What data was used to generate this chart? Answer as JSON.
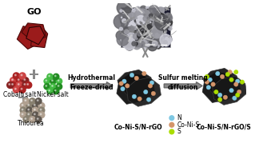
{
  "background_color": "#ffffff",
  "go_label": "GO",
  "cobalt_label": "Cobalt salt",
  "nickel_label": "Nickel salt",
  "thiourea_label": "Thiourea",
  "arrow1_label1": "Hydrothermal",
  "arrow1_label2": "Freeze-dried",
  "arrow2_label1": "Sulfur melting",
  "arrow2_label2": "diffusion",
  "product1_label": "Co-Ni-S/N-rGO",
  "product2_label": "Co-Ni-S/N-rGO/S",
  "legend_N": "N",
  "legend_CoNiS": "Co-Ni-S",
  "legend_S": "S",
  "go_color": "#9B1B1B",
  "go_dark": "#4A0808",
  "go_edge": "#2A0404",
  "cobalt_color1": "#CC4444",
  "cobalt_color2": "#AA2222",
  "cobalt_color3": "#882222",
  "nickel_color1": "#44BB44",
  "nickel_color2": "#228B22",
  "thiourea_color1": "#B0A090",
  "thiourea_color2": "#888070",
  "thiourea_color3": "#605850",
  "aerogel_color1": "#080808",
  "aerogel_color2": "#111111",
  "aerogel_color3": "#181818",
  "aerogel_edge": "#303030",
  "n_dot_color": "#7EC8E3",
  "conis_dot_color": "#D4956A",
  "s_dot_color": "#AADD00",
  "arrow_color": "#888888",
  "arrow_dark": "#666666",
  "text_color": "#000000",
  "label_fontsize": 7.0,
  "small_fontsize": 5.5,
  "tiny_fontsize": 4.5
}
